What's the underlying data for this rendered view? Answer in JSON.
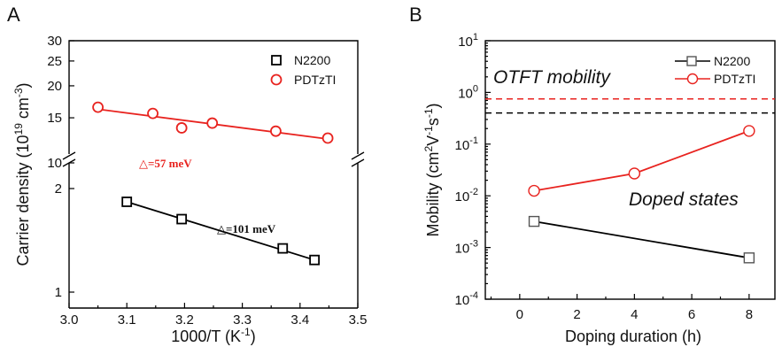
{
  "chart_data": [
    {
      "panel_label": "A",
      "type": "scatter",
      "xlabel": "1000/T (K",
      "xlabel_sup": "-1",
      "xlabel_end": ")",
      "ylabel": "Carrier density (10",
      "ylabel_sup1": "19",
      "ylabel_mid": " cm",
      "ylabel_sup2": "-3",
      "ylabel_end": ")",
      "x_ticks": [
        "3.0",
        "3.1",
        "3.2",
        "3.3",
        "3.4",
        "3.5"
      ],
      "y_ticks_lower": [
        "1",
        "2"
      ],
      "y_ticks_upper": [
        "10",
        "15",
        "20",
        "25",
        "30"
      ],
      "y_scale": "log, broken axis",
      "xlim": [
        3.0,
        3.5
      ],
      "series": [
        {
          "name": "N2200",
          "marker": "square",
          "color": "#000000",
          "x": [
            3.1,
            3.195,
            3.37,
            3.425
          ],
          "y": [
            1.83,
            1.63,
            1.34,
            1.24
          ],
          "fit_x": [
            3.1,
            3.425
          ],
          "fit_y": [
            1.83,
            1.24
          ],
          "annotation": "△=101 meV"
        },
        {
          "name": "PDTzTI",
          "marker": "circle",
          "color": "#e8231f",
          "x": [
            3.05,
            3.145,
            3.195,
            3.248,
            3.358,
            3.448
          ],
          "y": [
            16.5,
            15.6,
            13.7,
            14.3,
            13.3,
            12.5
          ],
          "fit_x": [
            3.05,
            3.448
          ],
          "fit_y": [
            16.2,
            12.4
          ],
          "annotation": "△=57 meV"
        }
      ]
    },
    {
      "panel_label": "B",
      "type": "line",
      "xlabel": "Doping duration (h)",
      "ylabel": "Mobility (cm",
      "ylabel_sup1": "2",
      "ylabel_mid1": "V",
      "ylabel_sup2": "-1",
      "ylabel_mid2": "s",
      "ylabel_sup3": "-1",
      "ylabel_end": ")",
      "x_ticks": [
        "0",
        "2",
        "4",
        "6",
        "8"
      ],
      "y_tick_base": "10",
      "y_tick_exps": [
        "-4",
        "-3",
        "-2",
        "-1",
        "0",
        "1"
      ],
      "y_scale": "log",
      "xlim": [
        -1.2,
        8.9
      ],
      "ylim": [
        0.0001,
        10
      ],
      "annotations": [
        "OTFT mobility",
        "Doped states"
      ],
      "series": [
        {
          "name": "N2200",
          "marker": "square",
          "color": "#000000",
          "x": [
            0.5,
            8
          ],
          "y": [
            0.0032,
            0.00063
          ],
          "otft_level": 0.4
        },
        {
          "name": "PDTzTI",
          "marker": "circle",
          "color": "#e8231f",
          "x": [
            0.5,
            4,
            8
          ],
          "y": [
            0.0125,
            0.027,
            0.18
          ],
          "otft_level": 0.75
        }
      ]
    }
  ]
}
